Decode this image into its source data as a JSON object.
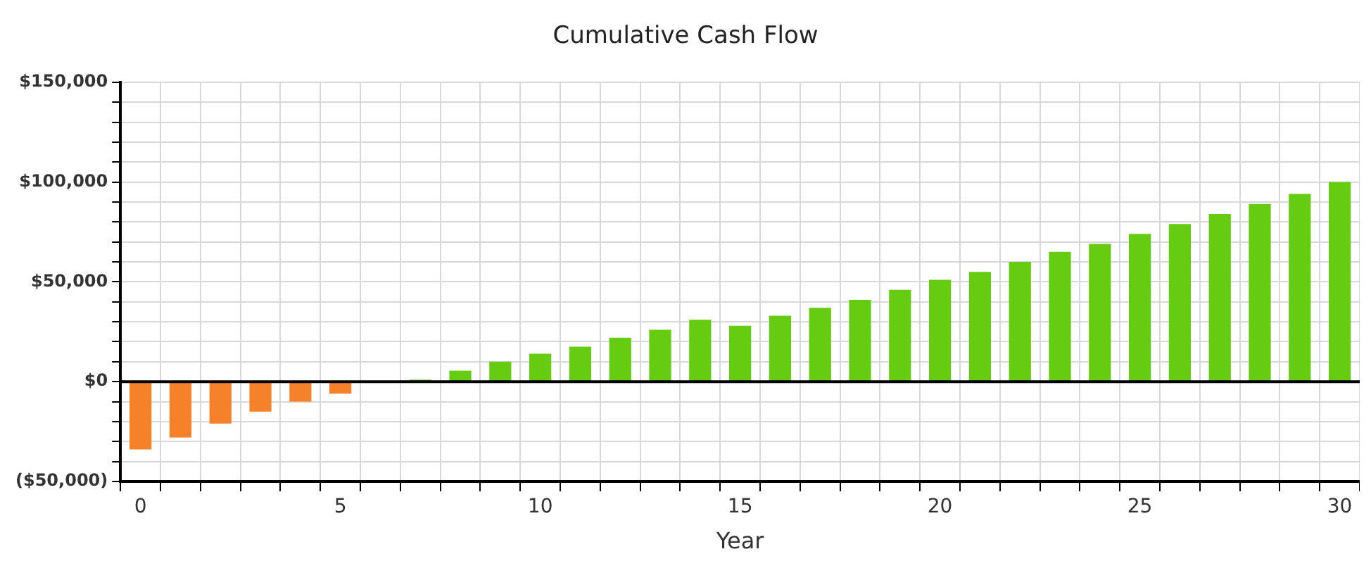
{
  "chart_data": {
    "type": "bar",
    "title": "Cumulative Cash Flow",
    "xlabel": "Year",
    "categories": [
      "0",
      null,
      null,
      null,
      null,
      "5",
      null,
      null,
      null,
      null,
      "10",
      null,
      null,
      null,
      null,
      "15",
      null,
      null,
      null,
      null,
      "20",
      null,
      null,
      null,
      null,
      "25",
      null,
      null,
      null,
      null,
      "30"
    ],
    "values": [
      -34000,
      -28000,
      -21000,
      -15000,
      -10000,
      -6000,
      0,
      1000,
      5500,
      10000,
      14000,
      17500,
      22000,
      26000,
      31000,
      28000,
      33000,
      37000,
      41000,
      46000,
      51000,
      55000,
      60000,
      65000,
      69000,
      74000,
      79000,
      84000,
      89000,
      94000,
      100000
    ],
    "colors": [
      "#f5822a",
      "#f5822a",
      "#f5822a",
      "#f5822a",
      "#f5822a",
      "#f5822a",
      "#f5822a",
      "#66cc11",
      "#66cc11",
      "#66cc11",
      "#66cc11",
      "#66cc11",
      "#66cc11",
      "#66cc11",
      "#66cc11",
      "#66cc11",
      "#66cc11",
      "#66cc11",
      "#66cc11",
      "#66cc11",
      "#66cc11",
      "#66cc11",
      "#66cc11",
      "#66cc11",
      "#66cc11",
      "#66cc11",
      "#66cc11",
      "#66cc11",
      "#66cc11",
      "#66cc11",
      "#66cc11"
    ],
    "ylim": [
      -50000,
      150000
    ],
    "yticks": [
      {
        "value": -50000,
        "label": "($50,000)"
      },
      {
        "value": -40000,
        "label": null
      },
      {
        "value": -30000,
        "label": null
      },
      {
        "value": -20000,
        "label": null
      },
      {
        "value": -10000,
        "label": null
      },
      {
        "value": 0,
        "label": "$0"
      },
      {
        "value": 10000,
        "label": null
      },
      {
        "value": 20000,
        "label": null
      },
      {
        "value": 30000,
        "label": null
      },
      {
        "value": 40000,
        "label": null
      },
      {
        "value": 50000,
        "label": "$50,000"
      },
      {
        "value": 60000,
        "label": null
      },
      {
        "value": 70000,
        "label": null
      },
      {
        "value": 80000,
        "label": null
      },
      {
        "value": 90000,
        "label": null
      },
      {
        "value": 100000,
        "label": "$100,000"
      },
      {
        "value": 110000,
        "label": null
      },
      {
        "value": 120000,
        "label": null
      },
      {
        "value": 130000,
        "label": null
      },
      {
        "value": 140000,
        "label": null
      },
      {
        "value": 150000,
        "label": "$150,000"
      }
    ],
    "ref_lines": [
      {
        "axis": "y",
        "value": 0,
        "color": "#000000"
      }
    ],
    "grid": true,
    "legend": false
  }
}
